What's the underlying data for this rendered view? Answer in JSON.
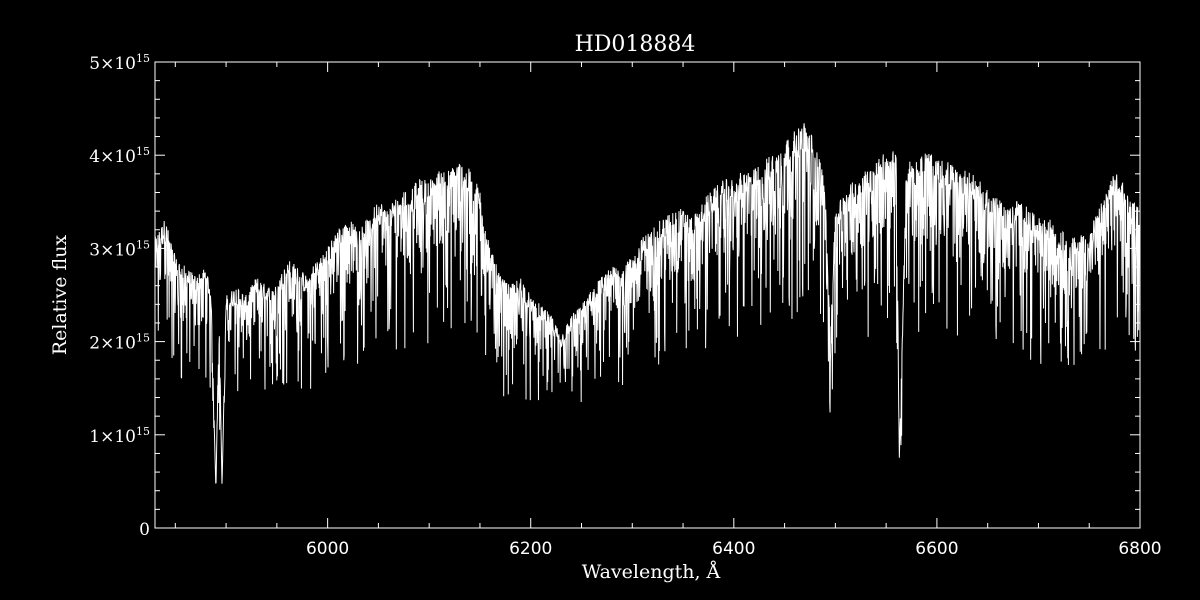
{
  "chart_data": {
    "type": "line",
    "title": "HD018884",
    "xlabel": "Wavelength, Å",
    "ylabel": "Relative flux",
    "xlim": [
      5830,
      6800
    ],
    "ylim": [
      0,
      5000000000000000.0
    ],
    "x_ticks": [
      6000,
      6200,
      6400,
      6600,
      6800
    ],
    "x_tick_labels": [
      "6000",
      "6200",
      "6400",
      "6600",
      "6800"
    ],
    "y_ticks": [
      0,
      1000000000000000.0,
      2000000000000000.0,
      3000000000000000.0,
      4000000000000000.0,
      5000000000000000.0
    ],
    "y_tick_labels": [
      {
        "mantissa": "0",
        "exp": ""
      },
      {
        "mantissa": "1×10",
        "exp": "15"
      },
      {
        "mantissa": "2×10",
        "exp": "15"
      },
      {
        "mantissa": "3×10",
        "exp": "15"
      },
      {
        "mantissa": "4×10",
        "exp": "15"
      },
      {
        "mantissa": "5×10",
        "exp": "15"
      }
    ],
    "color": "#ffffff",
    "background": "#000000",
    "grid": false,
    "series": [
      {
        "x": [
          5830,
          5840,
          5850,
          5860,
          5870,
          5880,
          5885,
          5890,
          5893,
          5896,
          5900,
          5910,
          5920,
          5930,
          5940,
          5950,
          5960,
          5970,
          5980,
          5990,
          6000,
          6010,
          6020,
          6030,
          6040,
          6050,
          6060,
          6070,
          6080,
          6090,
          6100,
          6110,
          6120,
          6130,
          6140,
          6150,
          6160,
          6170,
          6180,
          6190,
          6200,
          6210,
          6220,
          6230,
          6240,
          6250,
          6260,
          6270,
          6280,
          6290,
          6300,
          6310,
          6320,
          6330,
          6340,
          6350,
          6360,
          6370,
          6380,
          6390,
          6400,
          6410,
          6420,
          6430,
          6440,
          6450,
          6460,
          6470,
          6480,
          6490,
          6495,
          6500,
          6510,
          6520,
          6530,
          6540,
          6550,
          6560,
          6563,
          6570,
          6580,
          6590,
          6600,
          6610,
          6620,
          6630,
          6640,
          6650,
          6660,
          6670,
          6680,
          6690,
          6700,
          6710,
          6720,
          6730,
          6740,
          6750,
          6760,
          6770,
          6780,
          6790,
          6800
        ],
        "y": [
          3000000000000000.0,
          3200000000000000.0,
          2800000000000000.0,
          2700000000000000.0,
          2600000000000000.0,
          2700000000000000.0,
          2500000000000000.0,
          400000000000000.0,
          2300000000000000.0,
          450000000000000.0,
          2400000000000000.0,
          2500000000000000.0,
          2400000000000000.0,
          2600000000000000.0,
          2500000000000000.0,
          2500000000000000.0,
          2800000000000000.0,
          2700000000000000.0,
          2600000000000000.0,
          2800000000000000.0,
          2900000000000000.0,
          3100000000000000.0,
          3200000000000000.0,
          3100000000000000.0,
          3200000000000000.0,
          3400000000000000.0,
          3300000000000000.0,
          3500000000000000.0,
          3500000000000000.0,
          3600000000000000.0,
          3600000000000000.0,
          3700000000000000.0,
          3700000000000000.0,
          3800000000000000.0,
          3700000000000000.0,
          3500000000000000.0,
          2900000000000000.0,
          2600000000000000.0,
          2500000000000000.0,
          2600000000000000.0,
          2400000000000000.0,
          2300000000000000.0,
          2200000000000000.0,
          2000000000000000.0,
          2200000000000000.0,
          2300000000000000.0,
          2500000000000000.0,
          2600000000000000.0,
          2700000000000000.0,
          2700000000000000.0,
          2800000000000000.0,
          3000000000000000.0,
          3100000000000000.0,
          3200000000000000.0,
          3300000000000000.0,
          3300000000000000.0,
          3200000000000000.0,
          3400000000000000.0,
          3500000000000000.0,
          3600000000000000.0,
          3600000000000000.0,
          3700000000000000.0,
          3700000000000000.0,
          3800000000000000.0,
          3900000000000000.0,
          4000000000000000.0,
          4100000000000000.0,
          4200000000000000.0,
          4000000000000000.0,
          3600000000000000.0,
          2000000000000000.0,
          3300000000000000.0,
          3500000000000000.0,
          3600000000000000.0,
          3700000000000000.0,
          3800000000000000.0,
          3900000000000000.0,
          3900000000000000.0,
          750000000000000.0,
          3800000000000000.0,
          3800000000000000.0,
          3900000000000000.0,
          3800000000000000.0,
          3800000000000000.0,
          3700000000000000.0,
          3700000000000000.0,
          3600000000000000.0,
          3500000000000000.0,
          3400000000000000.0,
          3300000000000000.0,
          3400000000000000.0,
          3300000000000000.0,
          3200000000000000.0,
          3200000000000000.0,
          3100000000000000.0,
          3000000000000000.0,
          3000000000000000.0,
          3100000000000000.0,
          3300000000000000.0,
          3600000000000000.0,
          3700000000000000.0,
          3400000000000000.0,
          3300000000000000.0
        ]
      }
    ]
  }
}
